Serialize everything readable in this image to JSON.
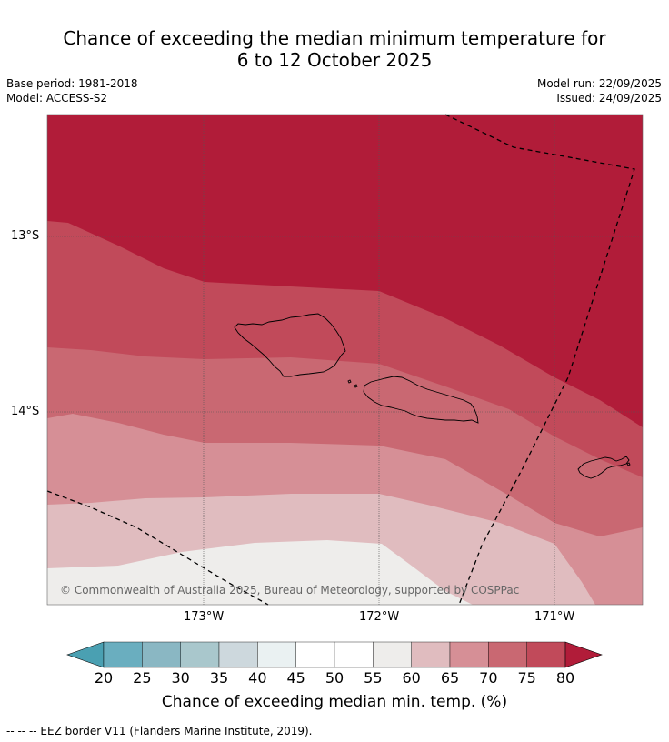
{
  "title_line1": "Chance of exceeding the median minimum temperature for",
  "title_line2": "6 to 12 October 2025",
  "meta": {
    "base_period": "Base period: 1981-2018",
    "model": "Model: ACCESS-S2",
    "model_run": "Model run: 22/09/2025",
    "issued": "Issued: 24/09/2025"
  },
  "map": {
    "lat_labels": [
      "13°S",
      "14°S"
    ],
    "lon_labels": [
      "173°W",
      "172°W",
      "171°W"
    ],
    "copyright": "© Commonwealth of Australia 2025, Bureau of Meteorology, supported by COSPPac"
  },
  "colorbar": {
    "ticks": [
      "20",
      "25",
      "30",
      "35",
      "40",
      "45",
      "50",
      "55",
      "60",
      "65",
      "70",
      "75",
      "80"
    ],
    "colors": [
      "#4aa0b2",
      "#6aaebf",
      "#8ab7c3",
      "#a9c7cc",
      "#cdd8dd",
      "#eaf1f2",
      "#ffffff",
      "#ffffff",
      "#eeedeb",
      "#e0bcbf",
      "#d68f96",
      "#c96872",
      "#c14a5a",
      "#b11c39"
    ],
    "label": "Chance of exceeding median min. temp. (%)"
  },
  "footer": "--  --  -- EEZ border V11 (Flanders Marine Institute, 2019)."
}
